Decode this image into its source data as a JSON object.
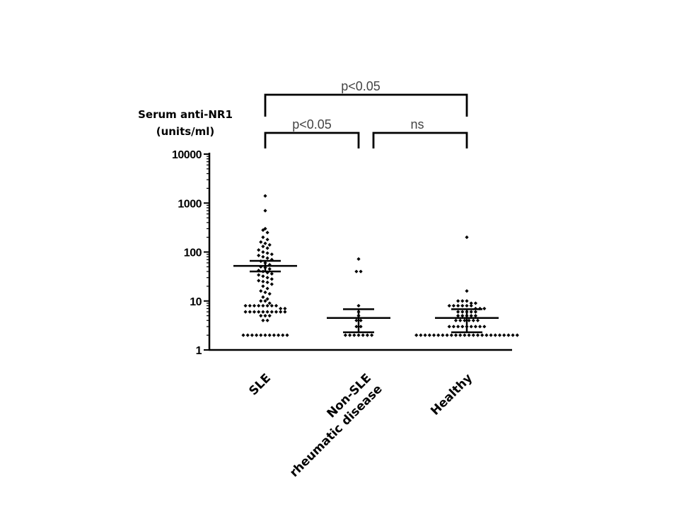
{
  "chart_data": {
    "type": "scatter",
    "ylabel": [
      "Serum anti-NR1",
      "(units/ml)"
    ],
    "yscale": "log",
    "ylim": [
      1,
      10000
    ],
    "yticks": [
      {
        "value": 1,
        "label": "1"
      },
      {
        "value": 10,
        "label": "10"
      },
      {
        "value": 100,
        "label": "100"
      },
      {
        "value": 1000,
        "label": "1000"
      },
      {
        "value": 10000,
        "label": "10000"
      }
    ],
    "categories": [
      {
        "label": [
          "SLE"
        ]
      },
      {
        "label": [
          "Non-SLE",
          "rheumatic disease"
        ]
      },
      {
        "label": [
          "Healthy"
        ]
      }
    ],
    "groups": [
      {
        "category": "SLE",
        "center": 52,
        "error_low": 40,
        "error_high": 66,
        "points": [
          1400,
          700,
          300,
          280,
          250,
          200,
          180,
          160,
          150,
          140,
          130,
          120,
          110,
          100,
          95,
          90,
          85,
          80,
          75,
          70,
          65,
          60,
          55,
          50,
          48,
          45,
          42,
          40,
          38,
          36,
          34,
          32,
          30,
          28,
          26,
          25,
          24,
          22,
          20,
          18,
          16,
          15,
          14,
          12,
          11,
          10,
          10,
          9,
          8,
          8,
          8,
          8,
          8,
          8,
          8,
          8,
          7,
          7,
          6,
          6,
          6,
          6,
          6,
          6,
          6,
          6,
          6,
          6,
          5,
          5,
          5,
          4,
          4,
          2,
          2,
          2,
          2,
          2,
          2,
          2,
          2,
          2,
          2,
          2
        ]
      },
      {
        "category": "Non-SLE rheumatic disease",
        "center": 4.5,
        "error_low": 2.3,
        "error_high": 6.8,
        "points": [
          72,
          40,
          40,
          8,
          6,
          5,
          4,
          4,
          3,
          3,
          2,
          2,
          2,
          2,
          2,
          2,
          2
        ]
      },
      {
        "category": "Healthy",
        "center": 4.5,
        "error_low": 2.3,
        "error_high": 6.8,
        "points": [
          200,
          16,
          10,
          10,
          10,
          9,
          9,
          8,
          8,
          8,
          8,
          8,
          8,
          7,
          7,
          7,
          6,
          6,
          6,
          6,
          6,
          5,
          5,
          5,
          5,
          5,
          4,
          4,
          4,
          4,
          4,
          4,
          3,
          3,
          3,
          3,
          3,
          3,
          3,
          3,
          3,
          2,
          2,
          2,
          2,
          2,
          2,
          2,
          2,
          2,
          2,
          2,
          2,
          2,
          2,
          2,
          2,
          2,
          2,
          2,
          2,
          2,
          2,
          2,
          2
        ]
      }
    ],
    "comparisons": [
      {
        "from": 0,
        "to": 2,
        "label": "p<0.05"
      },
      {
        "from": 0,
        "to": 1,
        "label": "p<0.05"
      },
      {
        "from": 1,
        "to": 2,
        "label": "ns"
      }
    ]
  }
}
